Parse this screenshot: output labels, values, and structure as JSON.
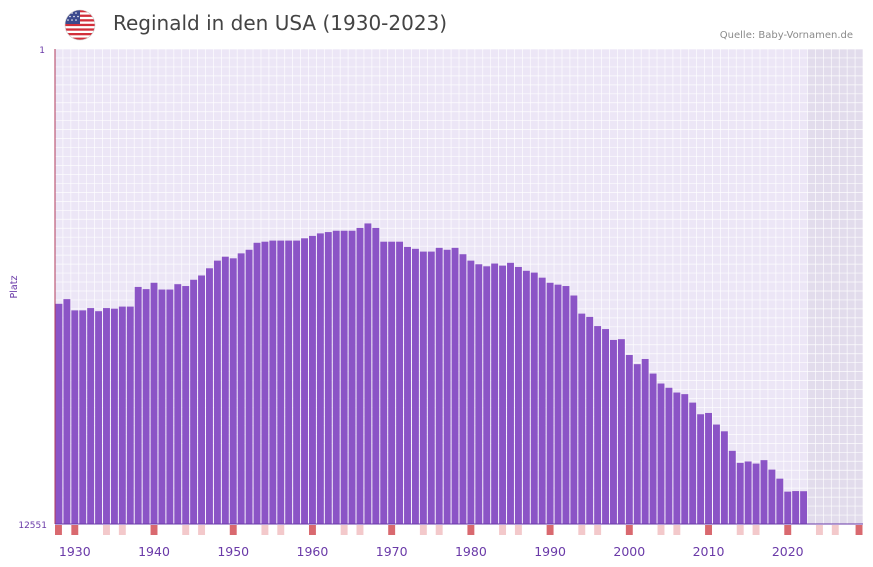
{
  "header": {
    "title": "Reginald in den USA (1930-2023)",
    "source": "Quelle: Baby-Vornamen.de",
    "flag_icon": "us-flag-icon"
  },
  "colors": {
    "bar": "#8b54c6",
    "plot_bg": "#ece6f6",
    "future_bg": "#e2dcec",
    "axis": "#b03a5b",
    "tick_accent": "#d9696f",
    "tick_light": "#f3c9cb",
    "tick_label": "#6a3aa8"
  },
  "chart_data": {
    "type": "bar",
    "title": "Reginald in den USA (1930-2023)",
    "ylabel": "Platz",
    "xlabel": "",
    "y_inverted": true,
    "y_scale": "log",
    "ylim": [
      1,
      12551
    ],
    "xlim": [
      1928,
      2029
    ],
    "y_tick_labels": [
      "1",
      "12551"
    ],
    "x_tick_labels": [
      "1930",
      "1940",
      "1950",
      "1960",
      "1970",
      "1980",
      "1990",
      "2000",
      "2010",
      "2020"
    ],
    "x_tick_values": [
      1930,
      1940,
      1950,
      1960,
      1970,
      1980,
      1990,
      2000,
      2010,
      2020
    ],
    "categories": [
      1928,
      1929,
      1930,
      1931,
      1932,
      1933,
      1934,
      1935,
      1936,
      1937,
      1938,
      1939,
      1940,
      1941,
      1942,
      1943,
      1944,
      1945,
      1946,
      1947,
      1948,
      1949,
      1950,
      1951,
      1952,
      1953,
      1954,
      1955,
      1956,
      1957,
      1958,
      1959,
      1960,
      1961,
      1962,
      1963,
      1964,
      1965,
      1966,
      1967,
      1968,
      1969,
      1970,
      1971,
      1972,
      1973,
      1974,
      1975,
      1976,
      1977,
      1978,
      1979,
      1980,
      1981,
      1982,
      1983,
      1984,
      1985,
      1986,
      1987,
      1988,
      1989,
      1990,
      1991,
      1992,
      1993,
      1994,
      1995,
      1996,
      1997,
      1998,
      1999,
      2000,
      2001,
      2002,
      2003,
      2004,
      2005,
      2006,
      2007,
      2008,
      2009,
      2010,
      2011,
      2012,
      2013,
      2014,
      2015,
      2016,
      2017,
      2018,
      2019,
      2020,
      2021,
      2022
    ],
    "values": [
      158,
      144,
      180,
      180,
      172,
      183,
      172,
      174,
      167,
      167,
      113,
      118,
      104,
      119,
      119,
      107,
      111,
      98,
      90,
      78,
      67,
      62,
      64,
      58,
      54,
      47,
      46,
      45,
      45,
      45,
      45,
      43,
      41,
      39,
      38,
      37,
      37,
      37,
      35,
      32,
      35,
      46,
      46,
      46,
      51,
      53,
      56,
      56,
      52,
      54,
      52,
      59,
      67,
      72,
      75,
      71,
      74,
      70,
      76,
      82,
      85,
      94,
      104,
      108,
      111,
      134,
      192,
      205,
      246,
      261,
      324,
      319,
      437,
      524,
      473,
      632,
      770,
      838,
      921,
      951,
      1125,
      1418,
      1382,
      1740,
      1990,
      2933,
      3727,
      3621,
      3779,
      3530,
      4259,
      5097,
      6598,
      6524,
      6543
    ]
  }
}
